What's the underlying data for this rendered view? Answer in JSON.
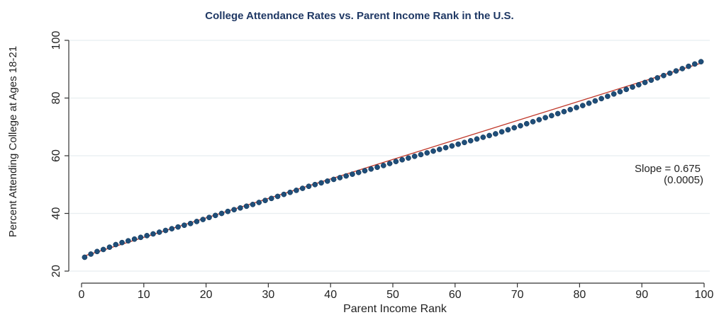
{
  "chart_data": {
    "type": "scatter",
    "title": "College Attendance Rates vs. Parent Income Rank in the U.S.",
    "xlabel": "Parent Income Rank",
    "ylabel": "Percent Attending College at Ages 18-21",
    "xlim": [
      0,
      100
    ],
    "ylim": [
      20,
      100
    ],
    "xticks": [
      0,
      10,
      20,
      30,
      40,
      50,
      60,
      70,
      80,
      90,
      100
    ],
    "yticks": [
      20,
      40,
      60,
      80,
      100
    ],
    "grid": "horizontal",
    "colors": {
      "points": "#1f4e79",
      "fit_line": "#c0392b",
      "title": "#1f3864",
      "grid": "#e8eef0"
    },
    "annotation": {
      "line1": "Slope = 0.675",
      "line2": "(0.0005)"
    },
    "fit_line": {
      "slope": 0.675,
      "x": [
        0.5,
        99.5
      ],
      "y": [
        25.3,
        92.1
      ]
    },
    "series": [
      {
        "x": [
          0.5,
          1.5,
          2.5,
          3.5,
          4.5,
          5.5,
          6.5,
          7.5,
          8.5,
          9.5,
          10.5,
          11.5,
          12.5,
          13.5,
          14.5,
          15.5,
          16.5,
          17.5,
          18.5,
          19.5,
          20.5,
          21.5,
          22.5,
          23.5,
          24.5,
          25.5,
          26.5,
          27.5,
          28.5,
          29.5,
          30.5,
          31.5,
          32.5,
          33.5,
          34.5,
          35.5,
          36.5,
          37.5,
          38.5,
          39.5,
          40.5,
          41.5,
          42.5,
          43.5,
          44.5,
          45.5,
          46.5,
          47.5,
          48.5,
          49.5,
          50.5,
          51.5,
          52.5,
          53.5,
          54.5,
          55.5,
          56.5,
          57.5,
          58.5,
          59.5,
          60.5,
          61.5,
          62.5,
          63.5,
          64.5,
          65.5,
          66.5,
          67.5,
          68.5,
          69.5,
          70.5,
          71.5,
          72.5,
          73.5,
          74.5,
          75.5,
          76.5,
          77.5,
          78.5,
          79.5,
          80.5,
          81.5,
          82.5,
          83.5,
          84.5,
          85.5,
          86.5,
          87.5,
          88.5,
          89.5,
          90.5,
          91.5,
          92.5,
          93.5,
          94.5,
          95.5,
          96.5,
          97.5,
          98.5,
          99.5
        ],
        "y": [
          24.8,
          25.9,
          26.8,
          27.5,
          28.3,
          29.2,
          29.9,
          30.5,
          31.1,
          31.7,
          32.3,
          32.9,
          33.5,
          34.1,
          34.7,
          35.3,
          35.9,
          36.5,
          37.2,
          37.9,
          38.6,
          39.3,
          40.0,
          40.7,
          41.3,
          41.9,
          42.5,
          43.1,
          43.8,
          44.5,
          45.2,
          45.9,
          46.6,
          47.3,
          48.0,
          48.7,
          49.4,
          50.0,
          50.6,
          51.2,
          51.8,
          52.4,
          53.0,
          53.6,
          54.2,
          54.8,
          55.4,
          56.0,
          56.6,
          57.3,
          58.0,
          58.6,
          59.2,
          59.8,
          60.4,
          61.0,
          61.6,
          62.2,
          62.8,
          63.4,
          64.0,
          64.6,
          65.2,
          65.8,
          66.4,
          67.0,
          67.6,
          68.3,
          69.0,
          69.7,
          70.4,
          71.1,
          71.8,
          72.5,
          73.2,
          73.9,
          74.6,
          75.3,
          76.0,
          76.7,
          77.4,
          78.2,
          79.0,
          79.8,
          80.6,
          81.4,
          82.2,
          83.0,
          83.8,
          84.6,
          85.4,
          86.2,
          87.0,
          87.8,
          88.6,
          89.4,
          90.2,
          91.0,
          91.8,
          92.6
        ]
      }
    ]
  }
}
